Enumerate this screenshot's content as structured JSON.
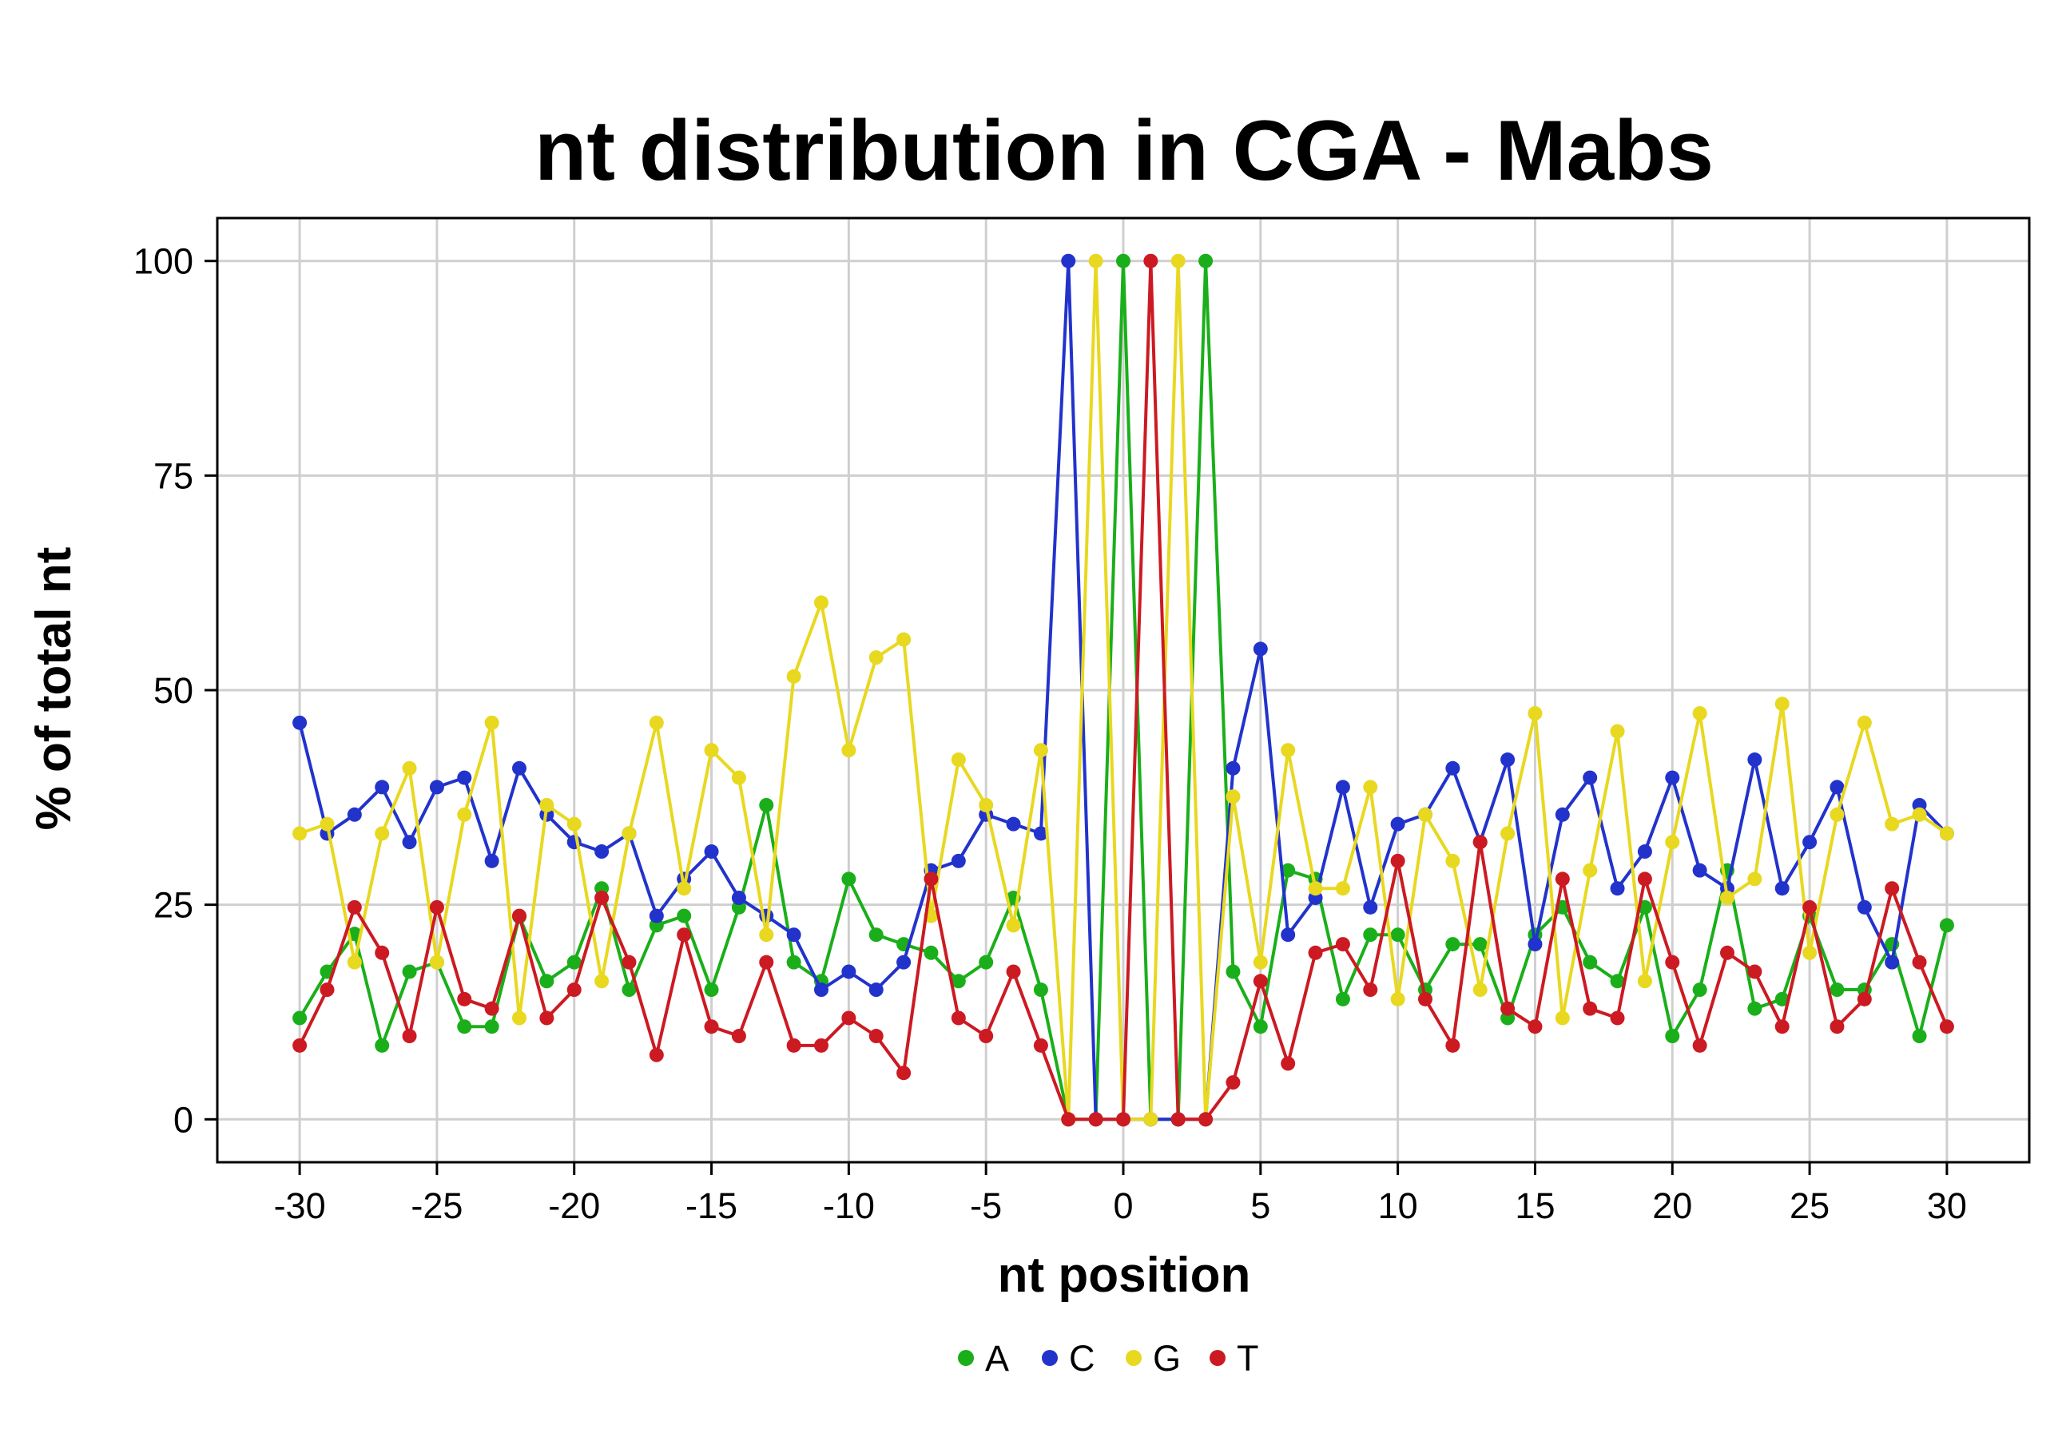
{
  "chart_data": {
    "type": "line",
    "title": "nt distribution in CGA - Mabs",
    "xlabel": "nt position",
    "ylabel": "% of total nt",
    "xlim": [
      -33,
      33
    ],
    "ylim": [
      -5,
      105
    ],
    "xticks": [
      -30,
      -25,
      -20,
      -15,
      -10,
      -5,
      0,
      5,
      10,
      15,
      20,
      25,
      30
    ],
    "yticks": [
      0,
      25,
      50,
      75,
      100
    ],
    "grid": true,
    "legend_position": "bottom",
    "x": [
      -30,
      -29,
      -28,
      -27,
      -26,
      -25,
      -24,
      -23,
      -22,
      -21,
      -20,
      -19,
      -18,
      -17,
      -16,
      -15,
      -14,
      -13,
      -12,
      -11,
      -10,
      -9,
      -8,
      -7,
      -6,
      -5,
      -4,
      -3,
      -2,
      -1,
      0,
      1,
      2,
      3,
      4,
      5,
      6,
      7,
      8,
      9,
      10,
      11,
      12,
      13,
      14,
      15,
      16,
      17,
      18,
      19,
      20,
      21,
      22,
      23,
      24,
      25,
      26,
      27,
      28,
      29,
      30
    ],
    "series": [
      {
        "name": "A",
        "color": "#1aaf1a",
        "values": [
          11.8,
          17.2,
          21.6,
          8.6,
          17.2,
          18.3,
          10.8,
          10.8,
          23.6,
          16.1,
          18.3,
          26.9,
          15.1,
          22.6,
          23.7,
          15.1,
          24.7,
          36.6,
          18.3,
          16.1,
          28.0,
          21.5,
          20.4,
          19.4,
          16.1,
          18.3,
          25.8,
          15.1,
          0,
          0,
          100,
          0,
          0,
          100,
          17.2,
          10.8,
          29.0,
          28.0,
          14.0,
          21.5,
          21.5,
          15.1,
          20.4,
          20.4,
          11.8,
          21.5,
          24.7,
          18.3,
          16.1,
          24.7,
          9.7,
          15.1,
          29.0,
          12.9,
          14.0,
          23.7,
          15.1,
          15.1,
          20.4,
          9.7,
          22.6
        ]
      },
      {
        "name": "C",
        "color": "#2233cc",
        "values": [
          46.2,
          33.3,
          35.5,
          38.7,
          32.3,
          38.7,
          39.8,
          30.1,
          40.9,
          35.5,
          32.3,
          31.2,
          33.3,
          23.7,
          28.0,
          31.2,
          25.8,
          23.7,
          21.5,
          15.1,
          17.2,
          15.1,
          18.3,
          29.0,
          30.1,
          35.5,
          34.4,
          33.3,
          100,
          0,
          0,
          0,
          0,
          0,
          40.9,
          54.8,
          21.5,
          25.8,
          38.7,
          24.7,
          34.4,
          35.5,
          40.9,
          32.3,
          41.9,
          20.4,
          35.5,
          39.8,
          26.9,
          31.2,
          39.8,
          29.0,
          26.9,
          41.9,
          26.9,
          32.3,
          38.7,
          24.7,
          18.3,
          36.6,
          33.3
        ]
      },
      {
        "name": "G",
        "color": "#e8d820",
        "values": [
          33.3,
          34.4,
          18.3,
          33.3,
          40.9,
          18.3,
          35.5,
          46.2,
          11.8,
          36.6,
          34.4,
          16.1,
          33.3,
          46.2,
          26.9,
          43.0,
          39.8,
          21.5,
          51.6,
          60.2,
          43.0,
          53.8,
          55.9,
          23.7,
          41.9,
          36.6,
          22.6,
          43.0,
          0,
          100,
          0,
          0,
          100,
          0,
          37.6,
          18.3,
          43.0,
          26.9,
          26.9,
          38.7,
          14.0,
          35.5,
          30.1,
          15.1,
          33.3,
          47.3,
          11.8,
          29.0,
          45.2,
          16.1,
          32.3,
          47.3,
          25.8,
          28.0,
          48.4,
          19.4,
          35.5,
          46.2,
          34.4,
          35.5,
          33.3
        ]
      },
      {
        "name": "T",
        "color": "#cc1a22",
        "values": [
          8.6,
          15.1,
          24.7,
          19.4,
          9.7,
          24.7,
          14.0,
          12.9,
          23.7,
          11.8,
          15.1,
          25.8,
          18.3,
          7.5,
          21.5,
          10.8,
          9.7,
          18.3,
          8.6,
          8.6,
          11.8,
          9.7,
          5.4,
          28.0,
          11.8,
          9.7,
          17.2,
          8.6,
          0,
          0,
          0,
          100,
          0,
          0,
          4.3,
          16.1,
          6.5,
          19.4,
          20.4,
          15.1,
          30.1,
          14.0,
          8.6,
          32.3,
          12.9,
          10.8,
          28.0,
          12.9,
          11.8,
          28.0,
          18.3,
          8.6,
          19.4,
          17.2,
          10.8,
          24.7,
          10.8,
          14.0,
          26.9,
          18.3,
          10.8
        ]
      }
    ]
  }
}
